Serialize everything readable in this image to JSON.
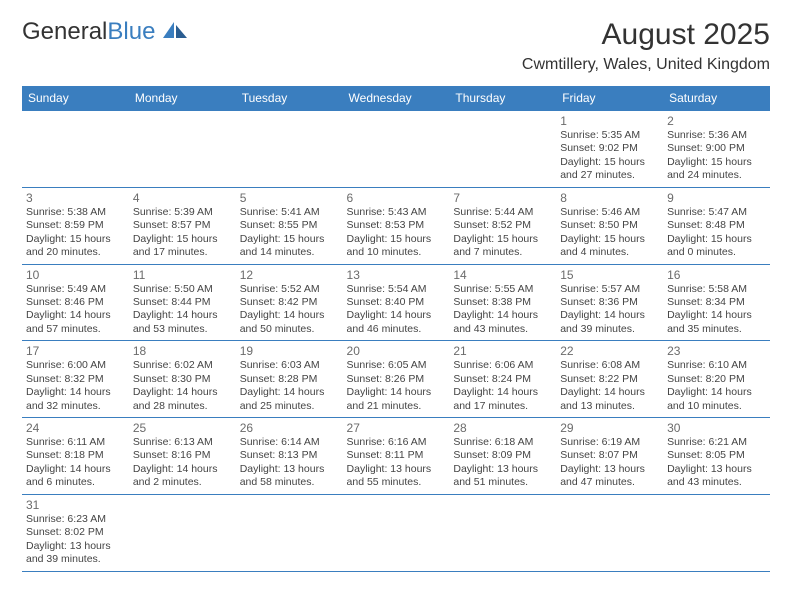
{
  "brand": {
    "text1": "General",
    "text2": "Blue"
  },
  "title": "August 2025",
  "location": "Cwmtillery, Wales, United Kingdom",
  "colors": {
    "accent": "#3a7ebf",
    "text": "#333333",
    "daynum": "#6b6b6b"
  },
  "dayHeaders": [
    "Sunday",
    "Monday",
    "Tuesday",
    "Wednesday",
    "Thursday",
    "Friday",
    "Saturday"
  ],
  "weeks": [
    [
      null,
      null,
      null,
      null,
      null,
      {
        "n": "1",
        "sr": "Sunrise: 5:35 AM",
        "ss": "Sunset: 9:02 PM",
        "d1": "Daylight: 15 hours",
        "d2": "and 27 minutes."
      },
      {
        "n": "2",
        "sr": "Sunrise: 5:36 AM",
        "ss": "Sunset: 9:00 PM",
        "d1": "Daylight: 15 hours",
        "d2": "and 24 minutes."
      }
    ],
    [
      {
        "n": "3",
        "sr": "Sunrise: 5:38 AM",
        "ss": "Sunset: 8:59 PM",
        "d1": "Daylight: 15 hours",
        "d2": "and 20 minutes."
      },
      {
        "n": "4",
        "sr": "Sunrise: 5:39 AM",
        "ss": "Sunset: 8:57 PM",
        "d1": "Daylight: 15 hours",
        "d2": "and 17 minutes."
      },
      {
        "n": "5",
        "sr": "Sunrise: 5:41 AM",
        "ss": "Sunset: 8:55 PM",
        "d1": "Daylight: 15 hours",
        "d2": "and 14 minutes."
      },
      {
        "n": "6",
        "sr": "Sunrise: 5:43 AM",
        "ss": "Sunset: 8:53 PM",
        "d1": "Daylight: 15 hours",
        "d2": "and 10 minutes."
      },
      {
        "n": "7",
        "sr": "Sunrise: 5:44 AM",
        "ss": "Sunset: 8:52 PM",
        "d1": "Daylight: 15 hours",
        "d2": "and 7 minutes."
      },
      {
        "n": "8",
        "sr": "Sunrise: 5:46 AM",
        "ss": "Sunset: 8:50 PM",
        "d1": "Daylight: 15 hours",
        "d2": "and 4 minutes."
      },
      {
        "n": "9",
        "sr": "Sunrise: 5:47 AM",
        "ss": "Sunset: 8:48 PM",
        "d1": "Daylight: 15 hours",
        "d2": "and 0 minutes."
      }
    ],
    [
      {
        "n": "10",
        "sr": "Sunrise: 5:49 AM",
        "ss": "Sunset: 8:46 PM",
        "d1": "Daylight: 14 hours",
        "d2": "and 57 minutes."
      },
      {
        "n": "11",
        "sr": "Sunrise: 5:50 AM",
        "ss": "Sunset: 8:44 PM",
        "d1": "Daylight: 14 hours",
        "d2": "and 53 minutes."
      },
      {
        "n": "12",
        "sr": "Sunrise: 5:52 AM",
        "ss": "Sunset: 8:42 PM",
        "d1": "Daylight: 14 hours",
        "d2": "and 50 minutes."
      },
      {
        "n": "13",
        "sr": "Sunrise: 5:54 AM",
        "ss": "Sunset: 8:40 PM",
        "d1": "Daylight: 14 hours",
        "d2": "and 46 minutes."
      },
      {
        "n": "14",
        "sr": "Sunrise: 5:55 AM",
        "ss": "Sunset: 8:38 PM",
        "d1": "Daylight: 14 hours",
        "d2": "and 43 minutes."
      },
      {
        "n": "15",
        "sr": "Sunrise: 5:57 AM",
        "ss": "Sunset: 8:36 PM",
        "d1": "Daylight: 14 hours",
        "d2": "and 39 minutes."
      },
      {
        "n": "16",
        "sr": "Sunrise: 5:58 AM",
        "ss": "Sunset: 8:34 PM",
        "d1": "Daylight: 14 hours",
        "d2": "and 35 minutes."
      }
    ],
    [
      {
        "n": "17",
        "sr": "Sunrise: 6:00 AM",
        "ss": "Sunset: 8:32 PM",
        "d1": "Daylight: 14 hours",
        "d2": "and 32 minutes."
      },
      {
        "n": "18",
        "sr": "Sunrise: 6:02 AM",
        "ss": "Sunset: 8:30 PM",
        "d1": "Daylight: 14 hours",
        "d2": "and 28 minutes."
      },
      {
        "n": "19",
        "sr": "Sunrise: 6:03 AM",
        "ss": "Sunset: 8:28 PM",
        "d1": "Daylight: 14 hours",
        "d2": "and 25 minutes."
      },
      {
        "n": "20",
        "sr": "Sunrise: 6:05 AM",
        "ss": "Sunset: 8:26 PM",
        "d1": "Daylight: 14 hours",
        "d2": "and 21 minutes."
      },
      {
        "n": "21",
        "sr": "Sunrise: 6:06 AM",
        "ss": "Sunset: 8:24 PM",
        "d1": "Daylight: 14 hours",
        "d2": "and 17 minutes."
      },
      {
        "n": "22",
        "sr": "Sunrise: 6:08 AM",
        "ss": "Sunset: 8:22 PM",
        "d1": "Daylight: 14 hours",
        "d2": "and 13 minutes."
      },
      {
        "n": "23",
        "sr": "Sunrise: 6:10 AM",
        "ss": "Sunset: 8:20 PM",
        "d1": "Daylight: 14 hours",
        "d2": "and 10 minutes."
      }
    ],
    [
      {
        "n": "24",
        "sr": "Sunrise: 6:11 AM",
        "ss": "Sunset: 8:18 PM",
        "d1": "Daylight: 14 hours",
        "d2": "and 6 minutes."
      },
      {
        "n": "25",
        "sr": "Sunrise: 6:13 AM",
        "ss": "Sunset: 8:16 PM",
        "d1": "Daylight: 14 hours",
        "d2": "and 2 minutes."
      },
      {
        "n": "26",
        "sr": "Sunrise: 6:14 AM",
        "ss": "Sunset: 8:13 PM",
        "d1": "Daylight: 13 hours",
        "d2": "and 58 minutes."
      },
      {
        "n": "27",
        "sr": "Sunrise: 6:16 AM",
        "ss": "Sunset: 8:11 PM",
        "d1": "Daylight: 13 hours",
        "d2": "and 55 minutes."
      },
      {
        "n": "28",
        "sr": "Sunrise: 6:18 AM",
        "ss": "Sunset: 8:09 PM",
        "d1": "Daylight: 13 hours",
        "d2": "and 51 minutes."
      },
      {
        "n": "29",
        "sr": "Sunrise: 6:19 AM",
        "ss": "Sunset: 8:07 PM",
        "d1": "Daylight: 13 hours",
        "d2": "and 47 minutes."
      },
      {
        "n": "30",
        "sr": "Sunrise: 6:21 AM",
        "ss": "Sunset: 8:05 PM",
        "d1": "Daylight: 13 hours",
        "d2": "and 43 minutes."
      }
    ],
    [
      {
        "n": "31",
        "sr": "Sunrise: 6:23 AM",
        "ss": "Sunset: 8:02 PM",
        "d1": "Daylight: 13 hours",
        "d2": "and 39 minutes."
      },
      null,
      null,
      null,
      null,
      null,
      null
    ]
  ]
}
